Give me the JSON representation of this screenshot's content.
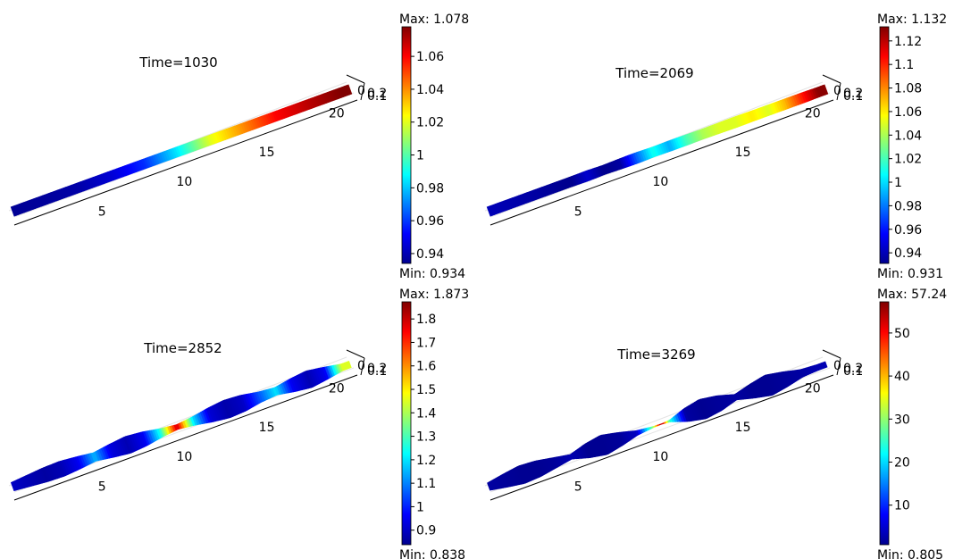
{
  "chart_data": [
    {
      "type": "heatmap",
      "title": "Time=1030",
      "color_scale": {
        "max_label": "Max: 1.078",
        "min_label": "Min: 0.934",
        "max": 1.078,
        "min": 0.934,
        "ticks": [
          "0.94",
          "0.96",
          "0.98",
          "1",
          "1.02",
          "1.04",
          "1.06"
        ],
        "tick_values": [
          0.94,
          0.96,
          0.98,
          1.0,
          1.02,
          1.04,
          1.06
        ]
      },
      "x_ticks": [
        "5",
        "10",
        "15",
        "20"
      ],
      "y_ticks": [
        "0",
        "0.2"
      ],
      "profile": {
        "x": [
          0,
          2,
          4,
          6,
          8,
          10,
          12,
          13,
          14,
          15,
          16,
          18,
          20
        ],
        "value": [
          0.935,
          0.936,
          0.938,
          0.945,
          0.958,
          0.985,
          1.02,
          1.03,
          1.04,
          1.05,
          1.06,
          1.07,
          1.078
        ],
        "width": [
          1,
          1,
          1,
          1,
          1,
          1,
          1,
          1,
          1,
          1,
          1,
          1,
          1
        ]
      }
    },
    {
      "type": "heatmap",
      "title": "Time=2069",
      "color_scale": {
        "max_label": "Max: 1.132",
        "min_label": "Min: 0.931",
        "max": 1.132,
        "min": 0.931,
        "ticks": [
          "0.94",
          "0.96",
          "0.98",
          "1",
          "1.02",
          "1.04",
          "1.06",
          "1.08",
          "1.1",
          "1.12"
        ],
        "tick_values": [
          0.94,
          0.96,
          0.98,
          1.0,
          1.02,
          1.04,
          1.06,
          1.08,
          1.1,
          1.12
        ]
      },
      "x_ticks": [
        "5",
        "10",
        "15",
        "20"
      ],
      "y_ticks": [
        "0",
        "0.2"
      ],
      "profile": {
        "x": [
          0,
          3,
          5,
          6,
          7,
          8,
          9,
          10,
          11,
          12,
          13,
          14,
          15,
          16,
          17,
          18,
          19,
          20
        ],
        "value": [
          0.94,
          0.935,
          0.93,
          0.945,
          0.93,
          0.935,
          0.975,
          1.01,
          0.99,
          1.02,
          1.04,
          1.05,
          1.05,
          1.06,
          1.05,
          1.07,
          1.1,
          1.13
        ],
        "width": [
          1,
          1,
          1,
          1.05,
          0.95,
          1.05,
          1.1,
          1,
          1.05,
          1.05,
          1,
          1.05,
          1.1,
          1.05,
          1.05,
          1.05,
          1.05,
          1
        ]
      }
    },
    {
      "type": "heatmap",
      "title": "Time=2852",
      "color_scale": {
        "max_label": "Max: 1.873",
        "min_label": "Min: 0.838",
        "max": 1.873,
        "min": 0.838,
        "ticks": [
          "0.9",
          "1",
          "1.1",
          "1.2",
          "1.3",
          "1.4",
          "1.5",
          "1.6",
          "1.7",
          "1.8"
        ],
        "tick_values": [
          0.9,
          1.0,
          1.1,
          1.2,
          1.3,
          1.4,
          1.5,
          1.6,
          1.7,
          1.8
        ]
      },
      "x_ticks": [
        "5",
        "10",
        "15",
        "20"
      ],
      "y_ticks": [
        "0",
        "0.2"
      ],
      "profile": {
        "x": [
          0,
          1,
          2,
          3,
          4,
          5,
          6,
          7,
          8,
          9,
          10,
          11,
          12,
          13,
          14,
          15,
          16,
          17,
          18,
          19,
          20
        ],
        "value": [
          0.9,
          0.88,
          0.86,
          0.88,
          0.95,
          1.15,
          0.93,
          0.88,
          0.95,
          1.25,
          1.8,
          1.2,
          0.92,
          0.87,
          0.9,
          1.05,
          1.2,
          0.95,
          0.88,
          0.95,
          1.45
        ],
        "width": [
          0.9,
          1.2,
          1.5,
          1.6,
          1.3,
          0.9,
          1.4,
          1.8,
          1.5,
          0.9,
          0.5,
          0.9,
          1.5,
          1.9,
          1.7,
          1.1,
          0.8,
          1.4,
          1.8,
          1.3,
          0.7
        ]
      }
    },
    {
      "type": "heatmap",
      "title": "Time=3269",
      "color_scale": {
        "max_label": "Max: 57.24",
        "min_label": "Min: 0.805",
        "max": 57.24,
        "min": 0.805,
        "ticks": [
          "10",
          "20",
          "30",
          "40",
          "50"
        ],
        "tick_values": [
          10,
          20,
          30,
          40,
          50
        ]
      },
      "x_ticks": [
        "5",
        "10",
        "15",
        "20"
      ],
      "y_ticks": [
        "0",
        "0.2"
      ],
      "profile": {
        "x": [
          0,
          1,
          2,
          3,
          4,
          5,
          6,
          7,
          8,
          9,
          10,
          10.5,
          11,
          12,
          13,
          14,
          15,
          16,
          17,
          18,
          19,
          20
        ],
        "value": [
          2,
          1.5,
          1,
          1,
          1.5,
          3,
          1,
          1,
          1.5,
          4,
          30,
          57,
          25,
          2,
          1,
          1.5,
          2,
          1,
          1,
          1.5,
          2,
          3
        ],
        "width": [
          0.8,
          1.4,
          1.9,
          1.7,
          1.1,
          0.5,
          1.5,
          2.1,
          1.4,
          0.5,
          0.12,
          0.05,
          0.2,
          1.4,
          2.1,
          1.6,
          0.6,
          1.5,
          2.2,
          1.6,
          0.8,
          0.6
        ]
      }
    }
  ]
}
